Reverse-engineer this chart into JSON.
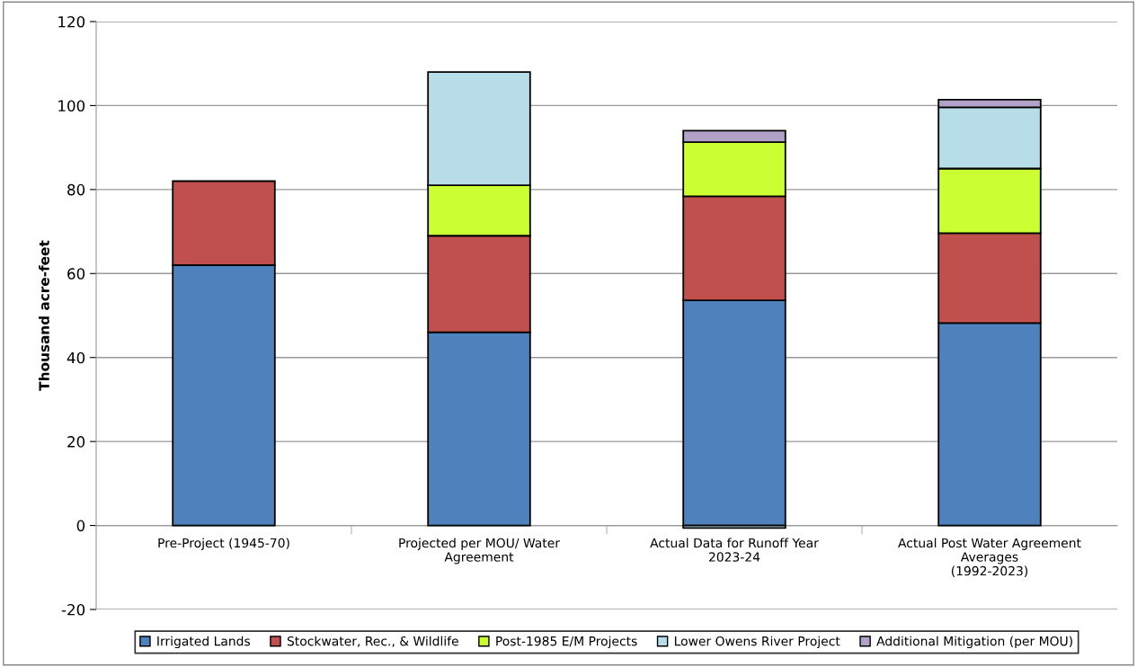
{
  "chart_data": {
    "type": "bar",
    "stacked": true,
    "ylabel": "Thousand acre-feet",
    "categories": [
      "Pre-Project (1945-70)",
      "Projected per MOU/ Water\nAgreement",
      "Actual Data for Runoff Year\n2023-24",
      "Actual Post Water Agreement\nAverages\n(1992-2023)"
    ],
    "series": [
      {
        "name": "Irrigated Lands",
        "color": "#4f81bd",
        "values": [
          62,
          46,
          53.6,
          48.2
        ]
      },
      {
        "name": "Stockwater, Rec., & Wildlife",
        "color": "#c0504d",
        "values": [
          20,
          23,
          24.8,
          21.4
        ]
      },
      {
        "name": "Post-1985 E/M Projects",
        "color": "#ccff33",
        "values": [
          null,
          12,
          12.9,
          15.4
        ]
      },
      {
        "name": "Lower Owens River Project",
        "color": "#b7dee8",
        "values": [
          null,
          27,
          -0.6,
          14.6
        ]
      },
      {
        "name": "Additional Mitigation (per MOU)",
        "color": "#b3a2c7",
        "values": [
          null,
          null,
          2.7,
          1.8
        ]
      }
    ],
    "ylim": [
      -20,
      120
    ],
    "yticks": [
      -20,
      0,
      20,
      40,
      60,
      80,
      100,
      120
    ],
    "grid": "y",
    "legend": "bottom"
  }
}
